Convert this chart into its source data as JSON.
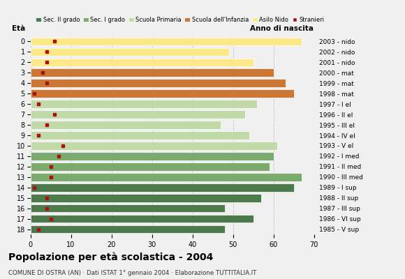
{
  "ages": [
    18,
    17,
    16,
    15,
    14,
    13,
    12,
    11,
    10,
    9,
    8,
    7,
    6,
    5,
    4,
    3,
    2,
    1,
    0
  ],
  "birth_years": [
    "1985 - V sup",
    "1986 - VI sup",
    "1987 - III sup",
    "1988 - II sup",
    "1989 - I sup",
    "1990 - III med",
    "1991 - II med",
    "1992 - I med",
    "1993 - V el",
    "1994 - IV el",
    "1995 - III el",
    "1996 - II el",
    "1997 - I el",
    "1998 - mat",
    "1999 - mat",
    "2000 - mat",
    "2001 - nido",
    "2002 - nido",
    "2003 - nido"
  ],
  "bar_values": [
    48,
    55,
    48,
    57,
    65,
    67,
    59,
    60,
    61,
    54,
    47,
    53,
    56,
    65,
    63,
    60,
    55,
    49,
    67
  ],
  "bar_colors": [
    "#4d7a4d",
    "#4d7a4d",
    "#4d7a4d",
    "#4d7a4d",
    "#4d7a4d",
    "#7aaa6e",
    "#7aaa6e",
    "#7aaa6e",
    "#c2d9a8",
    "#c2d9a8",
    "#c2d9a8",
    "#c2d9a8",
    "#c2d9a8",
    "#cc7733",
    "#cc7733",
    "#cc7733",
    "#fde888",
    "#fde888",
    "#fde888"
  ],
  "stranieri_values": [
    2,
    5,
    4,
    4,
    1,
    5,
    5,
    7,
    8,
    2,
    4,
    6,
    2,
    1,
    4,
    3,
    4,
    4,
    6
  ],
  "xlim": [
    0,
    70
  ],
  "xticks": [
    0,
    10,
    20,
    30,
    40,
    50,
    60,
    70
  ],
  "title": "Popolazione per età scolastica - 2004",
  "subtitle": "COMUNE DI OSTRA (AN) · Dati ISTAT 1° gennaio 2004 · Elaborazione TUTTITALIA.IT",
  "legend_labels": [
    "Sec. II grado",
    "Sec. I grado",
    "Scuola Primaria",
    "Scuola dell'Infanzia",
    "Asilo Nido",
    "Stranieri"
  ],
  "legend_colors": [
    "#4d7a4d",
    "#7aaa6e",
    "#c2d9a8",
    "#cc7733",
    "#fde888",
    "#aa1111"
  ],
  "eta_label": "Età",
  "anno_label": "Anno di nascita",
  "background_color": "#f0f0f0",
  "bar_height": 0.78,
  "grid_color": "#aaaaaa"
}
